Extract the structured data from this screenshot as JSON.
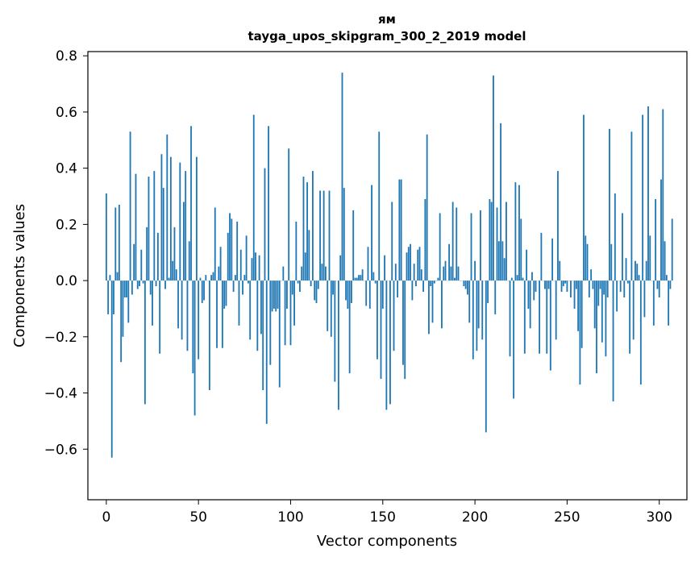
{
  "chart_data": {
    "type": "bar",
    "title_line1": "ям",
    "title_line2": "tayga_upos_skipgram_300_2_2019 model",
    "xlabel": "Vector components",
    "ylabel": "Components values",
    "xlim": [
      -10,
      315
    ],
    "ylim": [
      -0.78,
      0.815
    ],
    "xticks": [
      0,
      50,
      100,
      150,
      200,
      250,
      300
    ],
    "xtick_labels": [
      "0",
      "50",
      "100",
      "150",
      "200",
      "250",
      "300"
    ],
    "yticks": [
      -0.6,
      -0.4,
      -0.2,
      0.0,
      0.2,
      0.4,
      0.6,
      0.8
    ],
    "ytick_labels": [
      "−0.6",
      "−0.4",
      "−0.2",
      "0.0",
      "0.2",
      "0.4",
      "0.6",
      "0.8"
    ],
    "bar_color": "#1f77b4",
    "values": [
      0.31,
      -0.12,
      0.02,
      -0.63,
      -0.12,
      0.26,
      0.03,
      0.27,
      -0.29,
      -0.2,
      -0.06,
      -0.06,
      -0.15,
      0.53,
      -0.05,
      0.13,
      0.38,
      -0.03,
      -0.02,
      0.11,
      -0.01,
      -0.44,
      0.19,
      0.37,
      -0.05,
      -0.16,
      0.39,
      -0.02,
      0.17,
      -0.26,
      0.45,
      0.33,
      -0.03,
      0.52,
      0.01,
      0.44,
      0.07,
      0.19,
      0.04,
      -0.17,
      0.42,
      -0.21,
      0.28,
      0.39,
      -0.25,
      0.14,
      0.55,
      -0.33,
      -0.48,
      0.44,
      -0.28,
      0.01,
      -0.08,
      -0.07,
      0.02,
      0.0,
      -0.39,
      0.02,
      0.03,
      0.26,
      -0.24,
      0.05,
      0.12,
      -0.24,
      -0.1,
      -0.09,
      0.17,
      0.24,
      0.22,
      -0.04,
      0.02,
      0.21,
      -0.16,
      0.11,
      -0.05,
      0.02,
      0.16,
      -0.01,
      -0.21,
      0.08,
      0.59,
      0.1,
      -0.25,
      0.09,
      -0.19,
      -0.39,
      0.4,
      -0.51,
      0.55,
      -0.3,
      -0.11,
      -0.1,
      -0.11,
      -0.1,
      -0.38,
      0.0,
      0.05,
      -0.23,
      -0.1,
      0.47,
      -0.23,
      -0.05,
      -0.16,
      0.21,
      -0.01,
      -0.04,
      0.05,
      0.37,
      0.1,
      0.35,
      0.18,
      -0.02,
      0.39,
      -0.07,
      -0.08,
      -0.03,
      0.32,
      0.06,
      0.32,
      0.05,
      -0.18,
      0.32,
      -0.2,
      -0.05,
      -0.36,
      0.0,
      -0.46,
      0.09,
      0.74,
      0.33,
      -0.07,
      -0.1,
      -0.33,
      -0.08,
      0.25,
      0.01,
      0.01,
      0.02,
      0.02,
      0.04,
      0.0,
      -0.09,
      0.12,
      -0.1,
      0.34,
      0.03,
      -0.01,
      -0.28,
      0.53,
      -0.35,
      -0.1,
      0.09,
      -0.46,
      0.0,
      -0.44,
      0.28,
      -0.25,
      0.06,
      -0.06,
      0.36,
      0.36,
      -0.3,
      -0.35,
      0.1,
      0.12,
      0.13,
      -0.07,
      0.06,
      -0.02,
      0.11,
      0.12,
      0.04,
      -0.04,
      0.29,
      0.52,
      -0.19,
      -0.02,
      -0.15,
      -0.01,
      0.0,
      0.01,
      0.24,
      -0.17,
      0.05,
      0.07,
      0.0,
      0.13,
      0.05,
      0.28,
      0.01,
      0.26,
      0.05,
      0.0,
      0.0,
      -0.02,
      -0.03,
      -0.05,
      -0.15,
      0.24,
      -0.28,
      0.07,
      -0.25,
      -0.17,
      0.25,
      -0.21,
      0.0,
      -0.54,
      -0.08,
      0.29,
      0.28,
      0.73,
      -0.12,
      0.26,
      0.14,
      0.56,
      0.14,
      0.08,
      0.28,
      0.0,
      -0.27,
      0.01,
      -0.42,
      0.35,
      0.02,
      0.34,
      0.22,
      0.01,
      -0.26,
      0.11,
      -0.1,
      -0.17,
      0.03,
      -0.07,
      -0.04,
      0.0,
      -0.26,
      0.17,
      0.0,
      -0.03,
      -0.26,
      -0.03,
      -0.32,
      0.15,
      0.0,
      -0.21,
      0.39,
      0.07,
      -0.04,
      -0.02,
      -0.01,
      -0.04,
      0.0,
      -0.06,
      0.0,
      -0.1,
      -0.03,
      -0.18,
      -0.37,
      -0.24,
      0.59,
      0.16,
      0.13,
      -0.06,
      0.04,
      -0.03,
      -0.17,
      -0.33,
      -0.09,
      -0.03,
      -0.22,
      -0.05,
      -0.27,
      -0.06,
      0.54,
      0.13,
      -0.43,
      0.31,
      -0.11,
      0.0,
      -0.04,
      0.24,
      -0.06,
      0.08,
      -0.01,
      -0.26,
      0.53,
      -0.21,
      0.07,
      0.06,
      0.02,
      -0.37,
      0.59,
      -0.13,
      0.07,
      0.62,
      0.16,
      0.0,
      -0.16,
      0.29,
      -0.03,
      -0.06,
      0.36,
      0.61,
      0.14,
      0.02,
      -0.16,
      -0.03,
      0.22
    ]
  }
}
